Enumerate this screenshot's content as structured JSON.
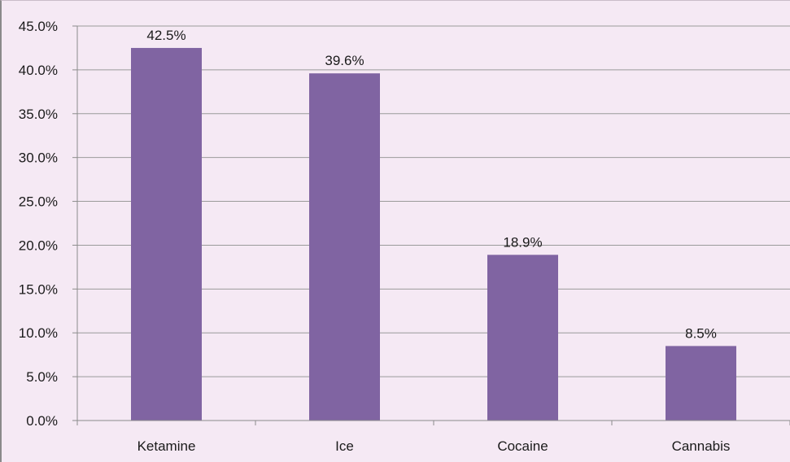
{
  "chart_data": {
    "type": "bar",
    "title": "",
    "xlabel": "",
    "ylabel": "",
    "categories": [
      "Ketamine",
      "Ice",
      "Cocaine",
      "Cannabis"
    ],
    "values": [
      42.5,
      39.6,
      18.9,
      8.5
    ],
    "data_labels": [
      "42.5%",
      "39.6%",
      "18.9%",
      "8.5%"
    ],
    "ylim": [
      0,
      45
    ],
    "y_ticks": [
      0,
      5,
      10,
      15,
      20,
      25,
      30,
      35,
      40,
      45
    ],
    "y_tick_labels": [
      "0.0%",
      "5.0%",
      "10.0%",
      "15.0%",
      "20.0%",
      "25.0%",
      "30.0%",
      "35.0%",
      "40.0%",
      "45.0%"
    ],
    "grid": true,
    "legend": "none",
    "colors": {
      "bar": "#8064a2",
      "background": "#f5e9f4",
      "gridline": "#9a9a9a",
      "axis": "#8c8c8c"
    }
  }
}
